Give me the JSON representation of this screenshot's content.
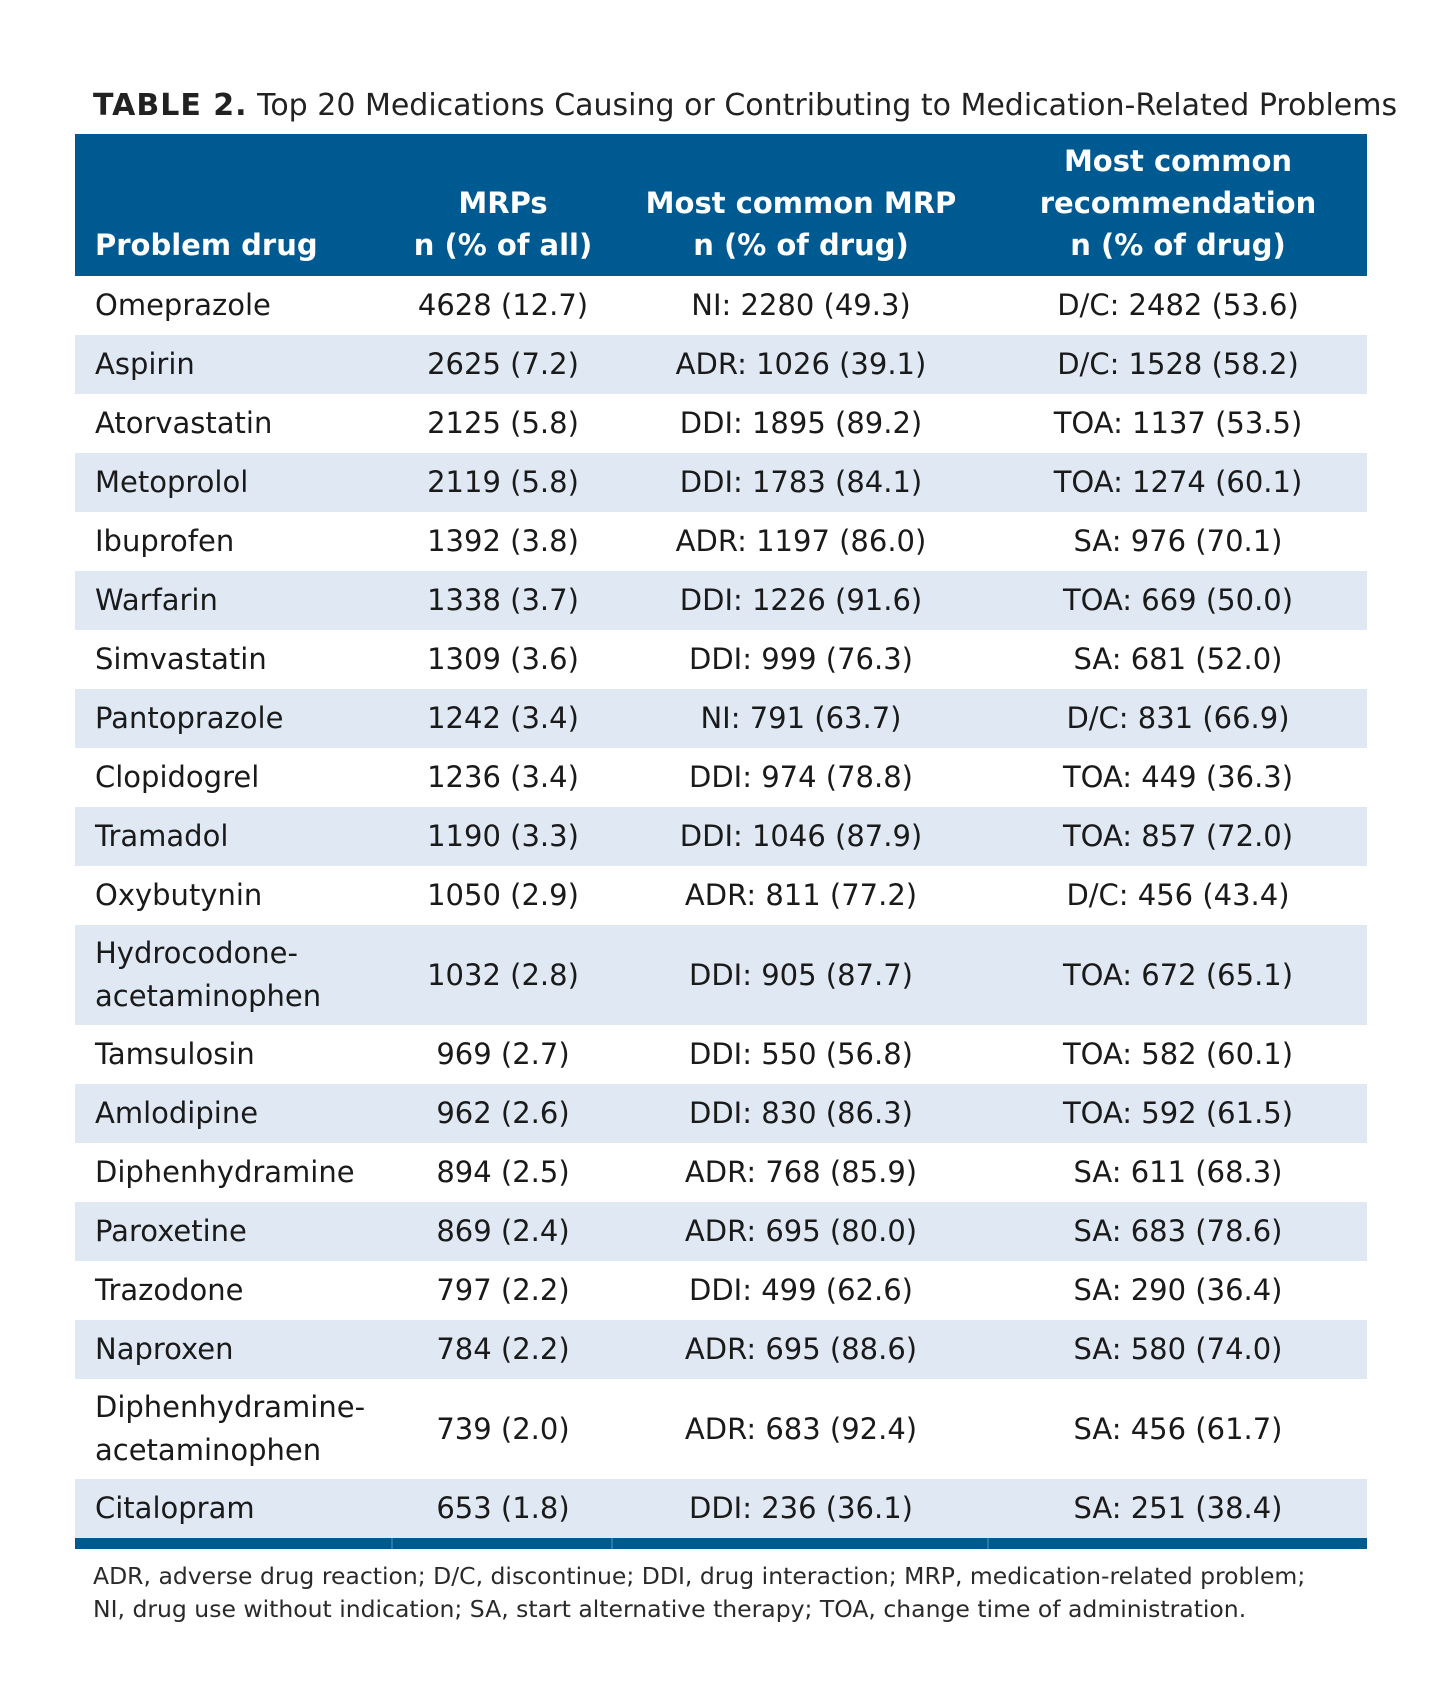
{
  "caption": {
    "label": "TABLE 2.",
    "title": "Top 20 Medications Causing or Contributing to Medication-Related Problems"
  },
  "columns": [
    {
      "line1": "",
      "line2": "",
      "line3": "Problem drug"
    },
    {
      "line1": "",
      "line2": "MRPs",
      "line3": "n (% of all)"
    },
    {
      "line1": "",
      "line2": "Most common MRP",
      "line3": "n (% of drug)"
    },
    {
      "line1": "Most common",
      "line2": "recommendation",
      "line3": "n (% of drug)"
    }
  ],
  "rows": [
    {
      "drug": "Omeprazole",
      "mrps": "4628 (12.7)",
      "mrp": "NI: 2280 (49.3)",
      "rec": "D/C: 2482 (53.6)"
    },
    {
      "drug": "Aspirin",
      "mrps": "2625 (7.2)",
      "mrp": "ADR: 1026 (39.1)",
      "rec": "D/C: 1528 (58.2)"
    },
    {
      "drug": "Atorvastatin",
      "mrps": "2125 (5.8)",
      "mrp": "DDI: 1895 (89.2)",
      "rec": "TOA: 1137 (53.5)"
    },
    {
      "drug": "Metoprolol",
      "mrps": "2119 (5.8)",
      "mrp": "DDI: 1783 (84.1)",
      "rec": "TOA: 1274 (60.1)"
    },
    {
      "drug": "Ibuprofen",
      "mrps": "1392 (3.8)",
      "mrp": "ADR: 1197 (86.0)",
      "rec": "SA: 976 (70.1)"
    },
    {
      "drug": "Warfarin",
      "mrps": "1338 (3.7)",
      "mrp": "DDI: 1226 (91.6)",
      "rec": "TOA: 669 (50.0)"
    },
    {
      "drug": "Simvastatin",
      "mrps": "1309 (3.6)",
      "mrp": "DDI: 999 (76.3)",
      "rec": "SA: 681 (52.0)"
    },
    {
      "drug": "Pantoprazole",
      "mrps": "1242 (3.4)",
      "mrp": "NI: 791 (63.7)",
      "rec": "D/C: 831 (66.9)"
    },
    {
      "drug": "Clopidogrel",
      "mrps": "1236 (3.4)",
      "mrp": "DDI: 974 (78.8)",
      "rec": "TOA: 449 (36.3)"
    },
    {
      "drug": "Tramadol",
      "mrps": "1190 (3.3)",
      "mrp": "DDI: 1046 (87.9)",
      "rec": "TOA: 857 (72.0)"
    },
    {
      "drug": "Oxybutynin",
      "mrps": "1050 (2.9)",
      "mrp": "ADR: 811 (77.2)",
      "rec": "D/C: 456 (43.4)"
    },
    {
      "drug": "Hydrocodone-",
      "drug2": "acetaminophen",
      "mrps": "1032 (2.8)",
      "mrp": "DDI: 905 (87.7)",
      "rec": "TOA: 672 (65.1)"
    },
    {
      "drug": "Tamsulosin",
      "mrps": "969 (2.7)",
      "mrp": "DDI: 550 (56.8)",
      "rec": "TOA: 582 (60.1)"
    },
    {
      "drug": "Amlodipine",
      "mrps": "962 (2.6)",
      "mrp": "DDI: 830 (86.3)",
      "rec": "TOA: 592 (61.5)"
    },
    {
      "drug": "Diphenhydramine",
      "mrps": "894 (2.5)",
      "mrp": "ADR: 768 (85.9)",
      "rec": "SA: 611 (68.3)"
    },
    {
      "drug": "Paroxetine",
      "mrps": "869 (2.4)",
      "mrp": "ADR: 695 (80.0)",
      "rec": "SA: 683 (78.6)"
    },
    {
      "drug": "Trazodone",
      "mrps": "797 (2.2)",
      "mrp": "DDI: 499 (62.6)",
      "rec": "SA: 290 (36.4)"
    },
    {
      "drug": "Naproxen",
      "mrps": "784 (2.2)",
      "mrp": "ADR: 695 (88.6)",
      "rec": "SA: 580 (74.0)"
    },
    {
      "drug": "Diphenhydramine-",
      "drug2": "acetaminophen",
      "mrps": "739 (2.0)",
      "mrp": "ADR: 683 (92.4)",
      "rec": "SA: 456 (61.7)"
    },
    {
      "drug": "Citalopram",
      "mrps": "653 (1.8)",
      "mrp": "DDI: 236 (36.1)",
      "rec": "SA: 251 (38.4)"
    }
  ],
  "footnote": {
    "line1": "ADR, adverse drug reaction; D/C, discontinue; DDI, drug interaction; MRP, medication-related problem;",
    "line2": "NI, drug use without indication; SA, start alternative therapy; TOA, change time of administration."
  }
}
